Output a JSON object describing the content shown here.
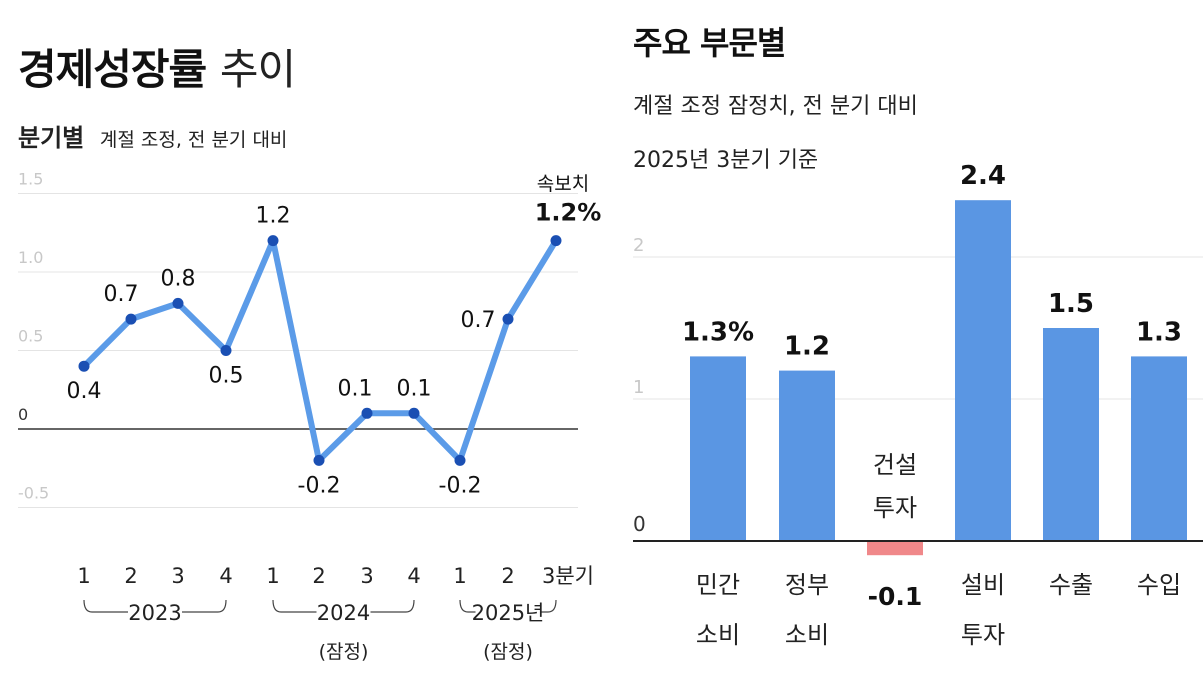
{
  "left": {
    "title_bold": "경제성장률",
    "title_light": "추이",
    "subtitle_bold": "분기별",
    "subtitle_note": "계절 조정, 전 분기 대비",
    "flash_label": "속보치",
    "year_labels": [
      "2023",
      "2024",
      "2025년"
    ],
    "prelim_label": "(잠정)",
    "quarter_suffix": "분기"
  },
  "right": {
    "title": "주요 부문별",
    "subtitle_line1": "계절 조정 잠정치, 전 분기 대비",
    "subtitle_line2": "2025년 3분기 기준"
  },
  "colors": {
    "line": "#5b9be8",
    "point": "#1a4fb3",
    "bar": "#5a96e3",
    "negative_bar": "#f0888a"
  },
  "chart_data": [
    {
      "type": "line",
      "title": "경제성장률 추이",
      "categories": [
        "1",
        "2",
        "3",
        "4",
        "1",
        "2",
        "3",
        "4",
        "1",
        "2",
        "3분기"
      ],
      "series": [
        {
          "values": [
            0.4,
            0.7,
            0.8,
            0.5,
            1.2,
            -0.2,
            0.1,
            0.1,
            -0.2,
            0.7,
            1.2
          ]
        }
      ],
      "data_labels": [
        "0.4",
        "0.7",
        "0.8",
        "0.5",
        "1.2",
        "-0.2",
        "0.1",
        "0.1",
        "-0.2",
        "0.7",
        "1.2%"
      ],
      "yticks": [
        "1.5",
        "1.0",
        "0.5",
        "0",
        "-0.5"
      ],
      "ylim": [
        -0.5,
        1.5
      ],
      "grid": true
    },
    {
      "type": "bar",
      "title": "주요 부문별",
      "categories": [
        "민간 소비",
        "정부 소비",
        "건설 투자",
        "설비 투자",
        "수출",
        "수입"
      ],
      "values": [
        1.3,
        1.2,
        -0.1,
        2.4,
        1.5,
        1.3
      ],
      "data_labels": [
        "1.3%",
        "1.2",
        "-0.1",
        "2.4",
        "1.5",
        "1.3"
      ],
      "yticks": [
        "2",
        "1",
        "0"
      ],
      "ylim": [
        0,
        2.4
      ],
      "grid": true
    }
  ]
}
